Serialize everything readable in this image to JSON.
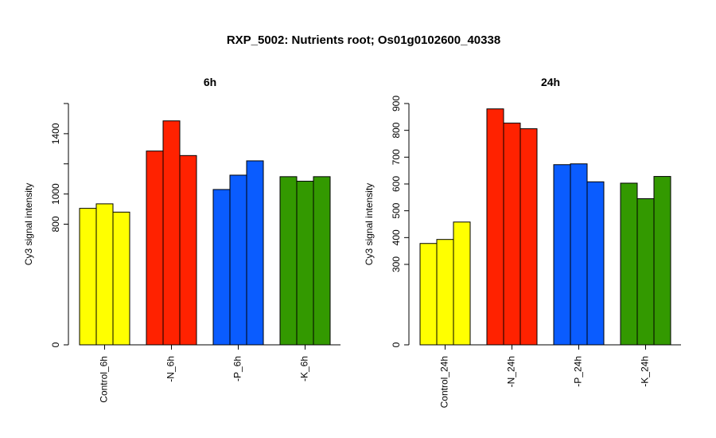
{
  "page": {
    "title": "RXP_5002: Nutrients root; Os01g0102600_40338"
  },
  "chart_data": [
    {
      "type": "bar",
      "title": "6h",
      "ylabel": "Cy3 signal intensity",
      "xlabel": "",
      "ylim": [
        0,
        1600
      ],
      "yticks": [
        0,
        800,
        1000,
        1400
      ],
      "minor_yticks": [
        1200,
        1600
      ],
      "groups": [
        {
          "label": "Control_6h",
          "color": "#ffff00",
          "values": [
            905,
            935,
            880
          ]
        },
        {
          "label": "-N_6h",
          "color": "#ff2200",
          "values": [
            1285,
            1485,
            1255
          ]
        },
        {
          "label": "-P_6h",
          "color": "#0a5cff",
          "values": [
            1030,
            1125,
            1220
          ]
        },
        {
          "label": "-K_6h",
          "color": "#339900",
          "values": [
            1115,
            1085,
            1115
          ]
        }
      ],
      "grid": false,
      "legend": "none"
    },
    {
      "type": "bar",
      "title": "24h",
      "ylabel": "Cy3 signal intensity",
      "xlabel": "",
      "ylim": [
        0,
        900
      ],
      "yticks": [
        0,
        300,
        400,
        500,
        600,
        700,
        800,
        900
      ],
      "minor_yticks": [],
      "groups": [
        {
          "label": "Control_24h",
          "color": "#ffff00",
          "values": [
            378,
            393,
            458
          ]
        },
        {
          "label": "-N_24h",
          "color": "#ff2200",
          "values": [
            880,
            827,
            806
          ]
        },
        {
          "label": "-P_24h",
          "color": "#0a5cff",
          "values": [
            672,
            675,
            608
          ]
        },
        {
          "label": "-K_24h",
          "color": "#339900",
          "values": [
            603,
            545,
            628
          ]
        }
      ],
      "grid": false,
      "legend": "none"
    }
  ]
}
